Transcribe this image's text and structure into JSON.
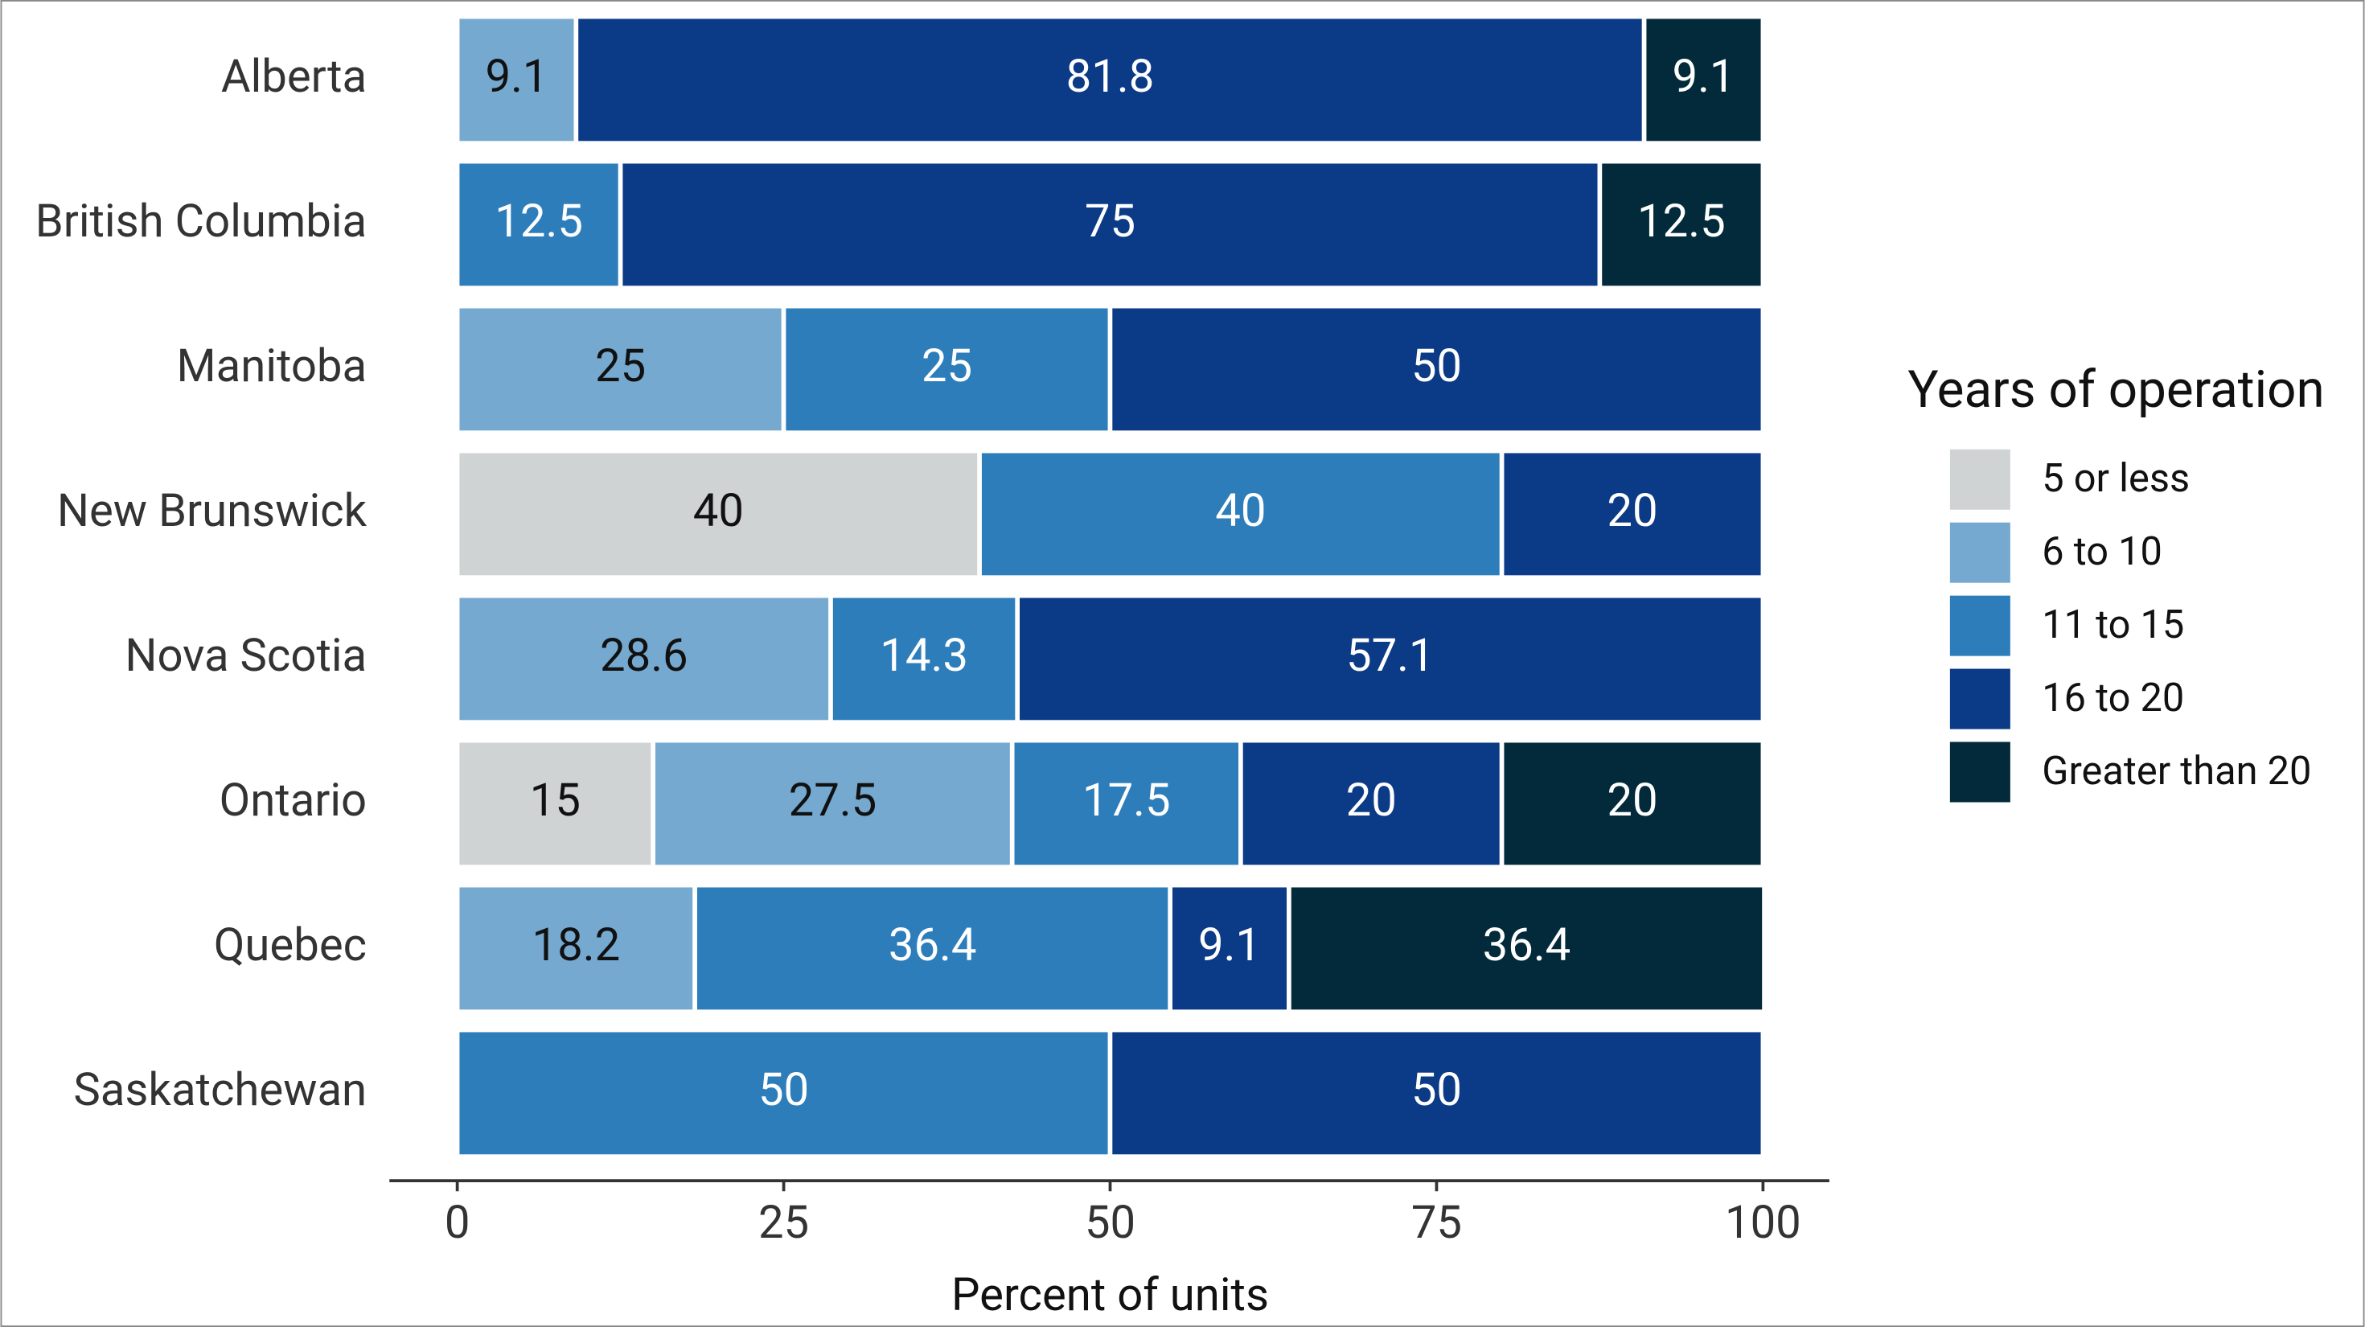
{
  "chart_data": {
    "type": "stacked_bar_horizontal",
    "x_label": "Percent of units",
    "legend_title": "Years of operation",
    "legend_position": "right",
    "categories": [
      "Alberta",
      "British Columbia",
      "Manitoba",
      "New Brunswick",
      "Nova Scotia",
      "Ontario",
      "Quebec",
      "Saskatchewan"
    ],
    "series": [
      {
        "name": "5 or less",
        "color": "#d0d3d4",
        "label_color": "#111111",
        "values": [
          null,
          null,
          null,
          40,
          null,
          15,
          null,
          null
        ]
      },
      {
        "name": "6 to 10",
        "color": "#75a9d0",
        "label_color": "#111111",
        "values": [
          9.1,
          null,
          25,
          null,
          28.6,
          27.5,
          18.2,
          null
        ]
      },
      {
        "name": "11 to 15",
        "color": "#2e7dbb",
        "label_color": "#ffffff",
        "values": [
          null,
          12.5,
          25,
          40,
          14.3,
          17.5,
          36.4,
          50
        ]
      },
      {
        "name": "16 to 20",
        "color": "#0b3a86",
        "label_color": "#ffffff",
        "values": [
          81.8,
          75,
          50,
          20,
          57.1,
          20,
          9.1,
          50
        ]
      },
      {
        "name": "Greater than 20",
        "color": "#022a3a",
        "label_color": "#ffffff",
        "values": [
          9.1,
          12.5,
          null,
          null,
          null,
          20,
          36.4,
          null
        ]
      }
    ],
    "xlim": [
      0,
      100
    ],
    "xticks": [
      0,
      25,
      50,
      75,
      100
    ],
    "grid": false
  }
}
